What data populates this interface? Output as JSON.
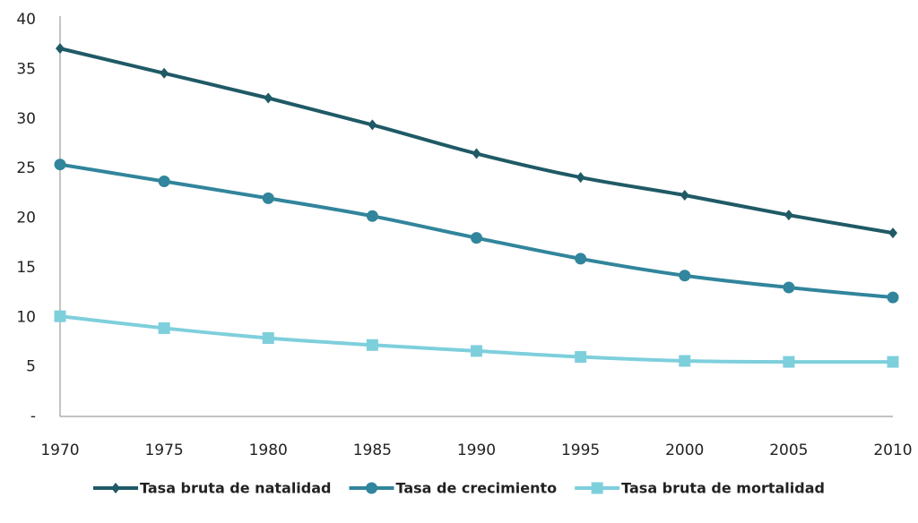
{
  "chart_data": {
    "type": "line",
    "x": [
      1970,
      1975,
      1980,
      1985,
      1990,
      1995,
      2000,
      2005,
      2010
    ],
    "xlim": [
      1970,
      2010
    ],
    "xticks": [
      1970,
      1975,
      1980,
      1985,
      1990,
      1995,
      2000,
      2005,
      2010
    ],
    "ylim": [
      0,
      40
    ],
    "yticks": [
      {
        "value": 0,
        "label": "-"
      },
      5,
      10,
      15,
      20,
      25,
      30,
      35,
      40
    ],
    "series": [
      {
        "name": "Tasa bruta de natalidad",
        "color": "#1f5a66",
        "marker": "diamond",
        "values": [
          37.1,
          34.6,
          32.1,
          29.4,
          26.5,
          24.1,
          22.3,
          20.3,
          18.5
        ]
      },
      {
        "name": "Tasa de crecimiento",
        "color": "#31859c",
        "marker": "circle",
        "values": [
          25.4,
          23.7,
          22.0,
          20.2,
          18.0,
          15.9,
          14.2,
          13.0,
          12.0
        ]
      },
      {
        "name": "Tasa bruta de mortalidad",
        "color": "#7ecfdc",
        "marker": "square",
        "values": [
          10.1,
          8.9,
          7.9,
          7.2,
          6.6,
          6.0,
          5.6,
          5.5,
          5.5
        ]
      }
    ]
  }
}
